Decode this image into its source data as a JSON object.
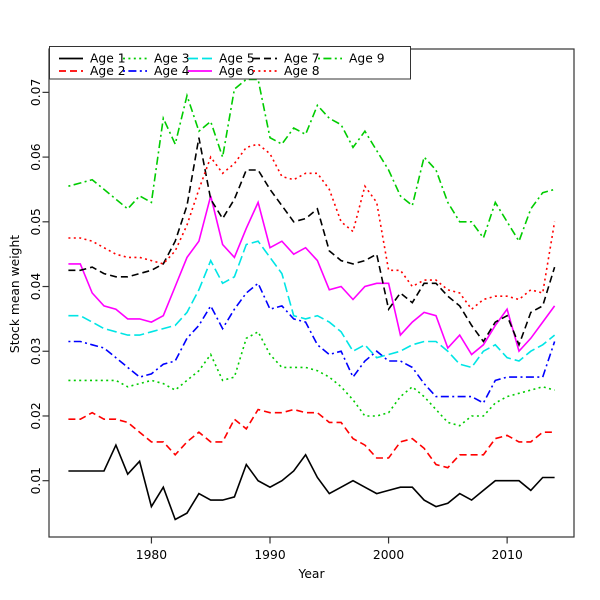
{
  "chart_data": {
    "type": "line",
    "xlabel": "Year",
    "ylabel": "Stock mean weight",
    "xlim": [
      1971.36,
      2015.64
    ],
    "ylim": [
      0.0013,
      0.0767
    ],
    "grid": false,
    "legend_position": "top-left",
    "x_ticks": {
      "values": [
        1980,
        1990,
        2000,
        2010
      ],
      "labels": [
        "1980",
        "1990",
        "2000",
        "2010"
      ]
    },
    "y_ticks": {
      "values": [
        0.01,
        0.02,
        0.03,
        0.04,
        0.05,
        0.06,
        0.07
      ],
      "labels": [
        "0.01",
        "0.02",
        "0.03",
        "0.04",
        "0.05",
        "0.06",
        "0.07"
      ]
    },
    "x": [
      1973,
      1974,
      1975,
      1976,
      1977,
      1978,
      1979,
      1980,
      1981,
      1982,
      1983,
      1984,
      1985,
      1986,
      1987,
      1988,
      1989,
      1990,
      1991,
      1992,
      1993,
      1994,
      1995,
      1996,
      1997,
      1998,
      1999,
      2000,
      2001,
      2002,
      2003,
      2004,
      2005,
      2006,
      2007,
      2008,
      2009,
      2010,
      2011,
      2012,
      2013,
      2014
    ],
    "series": [
      {
        "name": "Age 1",
        "color": "#000000",
        "lty": "solid",
        "values": [
          0.0115,
          0.0115,
          0.0115,
          0.0115,
          0.0155,
          0.011,
          0.013,
          0.006,
          0.009,
          0.004,
          0.005,
          0.008,
          0.007,
          0.007,
          0.0075,
          0.0125,
          0.01,
          0.009,
          0.01,
          0.0115,
          0.014,
          0.0105,
          0.008,
          0.009,
          0.01,
          0.009,
          0.008,
          0.0085,
          0.009,
          0.009,
          0.007,
          0.006,
          0.0065,
          0.008,
          0.007,
          0.0085,
          0.01,
          0.01,
          0.01,
          0.0085,
          0.0105,
          0.0105
        ]
      },
      {
        "name": "Age 2",
        "color": "#FF0000",
        "lty": "dashed",
        "values": [
          0.0195,
          0.0195,
          0.0205,
          0.0195,
          0.0195,
          0.019,
          0.0175,
          0.016,
          0.016,
          0.014,
          0.016,
          0.0175,
          0.016,
          0.016,
          0.0195,
          0.018,
          0.021,
          0.0205,
          0.0205,
          0.021,
          0.0205,
          0.0205,
          0.019,
          0.019,
          0.0165,
          0.0155,
          0.0135,
          0.0135,
          0.016,
          0.0165,
          0.015,
          0.0125,
          0.012,
          0.014,
          0.014,
          0.014,
          0.0165,
          0.017,
          0.016,
          0.016,
          0.0175,
          0.0175
        ]
      },
      {
        "name": "Age 3",
        "color": "#00CC00",
        "lty": "dotted",
        "values": [
          0.0255,
          0.0255,
          0.0255,
          0.0255,
          0.0255,
          0.0245,
          0.025,
          0.0255,
          0.025,
          0.024,
          0.0255,
          0.027,
          0.0295,
          0.0255,
          0.026,
          0.032,
          0.033,
          0.0295,
          0.0275,
          0.0275,
          0.0275,
          0.027,
          0.026,
          0.0245,
          0.0225,
          0.02,
          0.02,
          0.0205,
          0.023,
          0.0245,
          0.023,
          0.021,
          0.019,
          0.0185,
          0.02,
          0.02,
          0.022,
          0.023,
          0.0235,
          0.024,
          0.0245,
          0.024
        ]
      },
      {
        "name": "Age 4",
        "color": "#0000FF",
        "lty": "dotdash",
        "values": [
          0.0315,
          0.0315,
          0.031,
          0.0305,
          0.029,
          0.0275,
          0.026,
          0.0265,
          0.028,
          0.0285,
          0.032,
          0.034,
          0.037,
          0.0335,
          0.0365,
          0.039,
          0.0405,
          0.0365,
          0.037,
          0.035,
          0.0345,
          0.031,
          0.0295,
          0.03,
          0.026,
          0.0285,
          0.03,
          0.0285,
          0.0285,
          0.0275,
          0.025,
          0.023,
          0.023,
          0.023,
          0.023,
          0.022,
          0.0255,
          0.026,
          0.026,
          0.026,
          0.026,
          0.0315
        ]
      },
      {
        "name": "Age 5",
        "color": "#00E5E5",
        "lty": "longdash",
        "values": [
          0.0355,
          0.0355,
          0.0345,
          0.0335,
          0.033,
          0.0325,
          0.0325,
          0.033,
          0.0335,
          0.034,
          0.036,
          0.0395,
          0.044,
          0.0405,
          0.0415,
          0.0465,
          0.047,
          0.0445,
          0.042,
          0.0355,
          0.035,
          0.0355,
          0.0345,
          0.033,
          0.03,
          0.031,
          0.029,
          0.0295,
          0.03,
          0.031,
          0.0315,
          0.0315,
          0.03,
          0.028,
          0.0275,
          0.03,
          0.031,
          0.029,
          0.0285,
          0.03,
          0.031,
          0.0325
        ]
      },
      {
        "name": "Age 6",
        "color": "#FF00FF",
        "lty": "solid",
        "values": [
          0.0435,
          0.0435,
          0.039,
          0.037,
          0.0365,
          0.035,
          0.035,
          0.0345,
          0.0355,
          0.04,
          0.0445,
          0.047,
          0.054,
          0.0465,
          0.0445,
          0.049,
          0.053,
          0.046,
          0.047,
          0.045,
          0.046,
          0.044,
          0.0395,
          0.04,
          0.038,
          0.04,
          0.0405,
          0.0405,
          0.0325,
          0.0345,
          0.036,
          0.0355,
          0.0305,
          0.0325,
          0.0295,
          0.031,
          0.034,
          0.0365,
          0.03,
          0.032,
          0.0345,
          0.037
        ]
      },
      {
        "name": "Age 7",
        "color": "#000000",
        "lty": "dashed",
        "values": [
          0.0425,
          0.0425,
          0.043,
          0.042,
          0.0415,
          0.0415,
          0.042,
          0.0425,
          0.0435,
          0.047,
          0.0525,
          0.063,
          0.0535,
          0.0505,
          0.0535,
          0.058,
          0.058,
          0.055,
          0.0525,
          0.05,
          0.0505,
          0.052,
          0.0455,
          0.044,
          0.0435,
          0.044,
          0.045,
          0.0365,
          0.039,
          0.0375,
          0.0405,
          0.0405,
          0.0385,
          0.037,
          0.034,
          0.0315,
          0.0345,
          0.0355,
          0.031,
          0.036,
          0.037,
          0.043
        ]
      },
      {
        "name": "Age 8",
        "color": "#FF0000",
        "lty": "dotted",
        "values": [
          0.0475,
          0.0475,
          0.047,
          0.046,
          0.045,
          0.0445,
          0.0445,
          0.044,
          0.0435,
          0.0455,
          0.0495,
          0.055,
          0.06,
          0.0575,
          0.059,
          0.0615,
          0.062,
          0.0605,
          0.057,
          0.0565,
          0.0575,
          0.0575,
          0.055,
          0.05,
          0.0485,
          0.0555,
          0.053,
          0.0425,
          0.0425,
          0.04,
          0.041,
          0.041,
          0.0395,
          0.039,
          0.0365,
          0.038,
          0.0385,
          0.0385,
          0.038,
          0.0395,
          0.039,
          0.05
        ]
      },
      {
        "name": "Age 9",
        "color": "#00CC00",
        "lty": "dotdash",
        "values": [
          0.0555,
          0.056,
          0.0565,
          0.055,
          0.0535,
          0.052,
          0.054,
          0.053,
          0.066,
          0.062,
          0.0695,
          0.064,
          0.0655,
          0.06,
          0.0705,
          0.072,
          0.072,
          0.063,
          0.062,
          0.0645,
          0.0635,
          0.068,
          0.066,
          0.065,
          0.0615,
          0.064,
          0.061,
          0.058,
          0.054,
          0.0525,
          0.06,
          0.058,
          0.053,
          0.05,
          0.05,
          0.0475,
          0.053,
          0.05,
          0.047,
          0.052,
          0.0545,
          0.055
        ]
      }
    ]
  },
  "legend": {
    "items": [
      {
        "label": "Age 1"
      },
      {
        "label": "Age 2"
      },
      {
        "label": "Age 3"
      },
      {
        "label": "Age 4"
      },
      {
        "label": "Age 5"
      },
      {
        "label": "Age 6"
      },
      {
        "label": "Age 7"
      },
      {
        "label": "Age 8"
      },
      {
        "label": "Age 9"
      }
    ]
  },
  "colors": {
    "frame": "#333333",
    "text": "#000000"
  }
}
